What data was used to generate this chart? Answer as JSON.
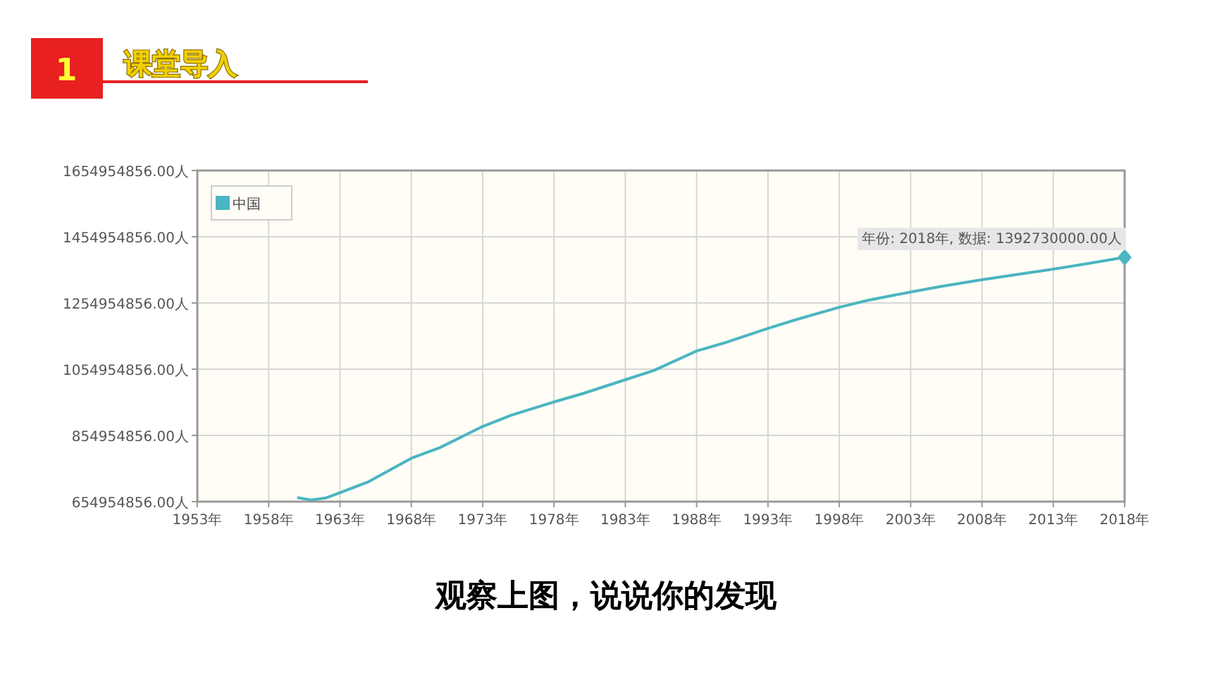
{
  "chart_data": {
    "type": "line",
    "title": "课堂导入",
    "annotations": [
      "1",
      {
        "text": "年份: 2018年, 数据: 1392730000.00人",
        "x": 2018,
        "y": 1392730000
      },
      "观察上图，说说你的发现"
    ],
    "x": [
      1960,
      1961,
      1962,
      1963,
      1965,
      1968,
      1970,
      1973,
      1975,
      1978,
      1980,
      1983,
      1985,
      1988,
      1990,
      1993,
      1995,
      1998,
      2000,
      2003,
      2005,
      2008,
      2010,
      2013,
      2015,
      2018
    ],
    "series": [
      {
        "name": "中国",
        "color": "#4bb5c1",
        "values": [
          667000000,
          660000000,
          666000000,
          682000000,
          715000000,
          786000000,
          818000000,
          882000000,
          916000000,
          956000000,
          981000000,
          1023000000,
          1051000000,
          1110000000,
          1135000000,
          1178000000,
          1205000000,
          1242000000,
          1263000000,
          1288000000,
          1304000000,
          1325000000,
          1338000000,
          1357000000,
          1371000000,
          1392730000
        ]
      }
    ],
    "xlim": [
      1953,
      2018
    ],
    "xticks": [
      {
        "value": 1953,
        "label": "1953年"
      },
      {
        "value": 1958,
        "label": "1958年"
      },
      {
        "value": 1963,
        "label": "1963年"
      },
      {
        "value": 1968,
        "label": "1968年"
      },
      {
        "value": 1973,
        "label": "1973年"
      },
      {
        "value": 1978,
        "label": "1978年"
      },
      {
        "value": 1983,
        "label": "1983年"
      },
      {
        "value": 1988,
        "label": "1988年"
      },
      {
        "value": 1993,
        "label": "1993年"
      },
      {
        "value": 1998,
        "label": "1998年"
      },
      {
        "value": 2003,
        "label": "2003年"
      },
      {
        "value": 2008,
        "label": "2008年"
      },
      {
        "value": 2013,
        "label": "2013年"
      },
      {
        "value": 2018,
        "label": "2018年"
      }
    ],
    "ylim": [
      654954856,
      1654954856
    ],
    "yticks": [
      {
        "value": 654954856,
        "label": "654954856.00人"
      },
      {
        "value": 854954856,
        "label": "854954856.00人"
      },
      {
        "value": 1054954856,
        "label": "1054954856.00人"
      },
      {
        "value": 1254954856,
        "label": "1254954856.00人"
      },
      {
        "value": 1454954856,
        "label": "1454954856.00人"
      },
      {
        "value": 1654954856,
        "label": "1654954856.00人"
      }
    ],
    "grid": true,
    "legend": "top left",
    "marker": "none",
    "line_style": "solid"
  }
}
